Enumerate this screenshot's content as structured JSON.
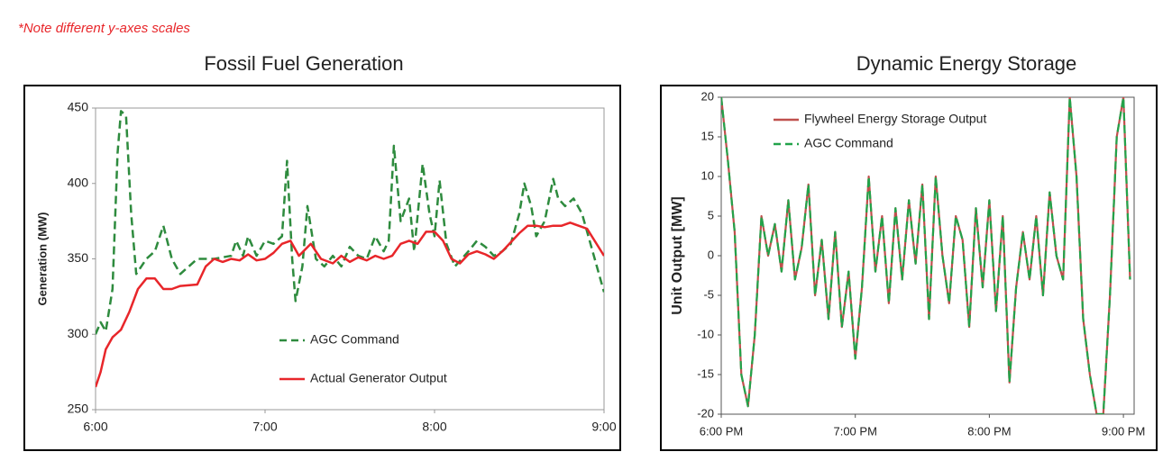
{
  "note": "*Note different y-axes scales",
  "chart_data": [
    {
      "type": "line",
      "title": "Fossil Fuel Generation",
      "y_label": "Generation (MW)",
      "xlim": [
        6,
        9
      ],
      "xticks": [
        {
          "value": 6,
          "label": "6:00"
        },
        {
          "value": 7,
          "label": "7:00"
        },
        {
          "value": 8,
          "label": "8:00"
        },
        {
          "value": 9,
          "label": "9:00"
        }
      ],
      "ylim": [
        250,
        450
      ],
      "yticks": [
        250,
        300,
        350,
        400,
        450
      ],
      "grid": false,
      "legend": "lower center",
      "series": [
        {
          "name": "AGC Command",
          "color": "#2e8b3e",
          "style": "dashed",
          "x": [
            6.0,
            6.03,
            6.06,
            6.1,
            6.13,
            6.15,
            6.18,
            6.21,
            6.24,
            6.3,
            6.35,
            6.4,
            6.45,
            6.5,
            6.55,
            6.6,
            6.7,
            6.8,
            6.83,
            6.87,
            6.9,
            6.95,
            7.0,
            7.05,
            7.1,
            7.13,
            7.16,
            7.18,
            7.22,
            7.25,
            7.3,
            7.35,
            7.4,
            7.45,
            7.5,
            7.55,
            7.6,
            7.65,
            7.7,
            7.73,
            7.76,
            7.8,
            7.85,
            7.88,
            7.93,
            7.97,
            8.0,
            8.03,
            8.07,
            8.12,
            8.2,
            8.25,
            8.3,
            8.35,
            8.4,
            8.45,
            8.5,
            8.53,
            8.57,
            8.6,
            8.65,
            8.7,
            8.73,
            8.77,
            8.82,
            8.87,
            8.92,
            9.0
          ],
          "values": [
            300,
            308,
            302,
            330,
            420,
            448,
            445,
            380,
            340,
            350,
            355,
            372,
            350,
            340,
            345,
            350,
            350,
            352,
            362,
            352,
            365,
            352,
            362,
            360,
            365,
            415,
            350,
            322,
            345,
            385,
            350,
            345,
            352,
            345,
            358,
            352,
            350,
            365,
            355,
            362,
            425,
            375,
            390,
            355,
            413,
            380,
            365,
            402,
            360,
            345,
            355,
            362,
            358,
            352,
            355,
            360,
            380,
            400,
            385,
            365,
            375,
            403,
            390,
            385,
            390,
            380,
            360,
            328
          ]
        },
        {
          "name": "Actual Generator Output",
          "color": "#e8262a",
          "style": "solid",
          "x": [
            6.0,
            6.03,
            6.06,
            6.1,
            6.15,
            6.2,
            6.25,
            6.3,
            6.35,
            6.4,
            6.45,
            6.5,
            6.6,
            6.65,
            6.7,
            6.75,
            6.8,
            6.85,
            6.9,
            6.95,
            7.0,
            7.05,
            7.1,
            7.15,
            7.2,
            7.27,
            7.33,
            7.4,
            7.45,
            7.5,
            7.55,
            7.6,
            7.65,
            7.7,
            7.75,
            7.8,
            7.85,
            7.9,
            7.95,
            8.0,
            8.05,
            8.1,
            8.15,
            8.2,
            8.25,
            8.3,
            8.35,
            8.4,
            8.5,
            8.55,
            8.6,
            8.65,
            8.7,
            8.75,
            8.8,
            8.85,
            8.9,
            9.0
          ],
          "values": [
            265,
            275,
            290,
            298,
            303,
            315,
            330,
            337,
            337,
            330,
            330,
            332,
            333,
            345,
            350,
            348,
            350,
            349,
            353,
            349,
            350,
            354,
            360,
            362,
            352,
            360,
            350,
            347,
            352,
            348,
            351,
            349,
            352,
            350,
            352,
            360,
            362,
            360,
            368,
            368,
            362,
            350,
            347,
            353,
            355,
            353,
            350,
            355,
            367,
            372,
            372,
            371,
            372,
            372,
            374,
            372,
            370,
            352
          ]
        }
      ]
    },
    {
      "type": "line",
      "title": "Dynamic Energy Storage",
      "y_label": "Unit Output [MW]",
      "xlim": [
        18,
        21.08
      ],
      "xticks": [
        {
          "value": 18,
          "label": "6:00 PM"
        },
        {
          "value": 19,
          "label": "7:00 PM"
        },
        {
          "value": 20,
          "label": "8:00 PM"
        },
        {
          "value": 21,
          "label": "9:00 PM"
        }
      ],
      "ylim": [
        -20,
        20
      ],
      "yticks": [
        -20,
        -15,
        -10,
        -5,
        0,
        5,
        10,
        15,
        20
      ],
      "grid": false,
      "legend": "upper left",
      "series": [
        {
          "name": "Flywheel Energy Storage Output",
          "color": "#c0504d",
          "style": "solid",
          "x": [
            18.0,
            18.05,
            18.1,
            18.15,
            18.2,
            18.25,
            18.3,
            18.35,
            18.4,
            18.45,
            18.5,
            18.55,
            18.6,
            18.65,
            18.7,
            18.75,
            18.8,
            18.85,
            18.9,
            18.95,
            19.0,
            19.05,
            19.1,
            19.15,
            19.2,
            19.25,
            19.3,
            19.35,
            19.4,
            19.45,
            19.5,
            19.55,
            19.6,
            19.65,
            19.7,
            19.75,
            19.8,
            19.85,
            19.9,
            19.95,
            20.0,
            20.05,
            20.1,
            20.15,
            20.2,
            20.25,
            20.3,
            20.35,
            20.4,
            20.45,
            20.5,
            20.55,
            20.6,
            20.65,
            20.7,
            20.75,
            20.8,
            20.85,
            20.9,
            20.95,
            21.0,
            21.05
          ],
          "values": [
            20,
            12,
            3,
            -15,
            -19,
            -10,
            5,
            0,
            4,
            -2,
            7,
            -3,
            1,
            9,
            -5,
            2,
            -8,
            3,
            -9,
            -2,
            -13,
            -4,
            10,
            -2,
            5,
            -6,
            6,
            -3,
            7,
            -1,
            9,
            -8,
            10,
            0,
            -6,
            5,
            2,
            -9,
            6,
            -4,
            7,
            -7,
            5,
            -16,
            -4,
            3,
            -3,
            5,
            -5,
            8,
            0,
            -3,
            20,
            10,
            -8,
            -15,
            -20,
            -20,
            -5,
            15,
            20,
            -3
          ]
        },
        {
          "name": "AGC Command",
          "color": "#22a34a",
          "style": "dashed",
          "x": [
            18.0,
            18.05,
            18.1,
            18.15,
            18.2,
            18.25,
            18.3,
            18.35,
            18.4,
            18.45,
            18.5,
            18.55,
            18.6,
            18.65,
            18.7,
            18.75,
            18.8,
            18.85,
            18.9,
            18.95,
            19.0,
            19.05,
            19.1,
            19.15,
            19.2,
            19.25,
            19.3,
            19.35,
            19.4,
            19.45,
            19.5,
            19.55,
            19.6,
            19.65,
            19.7,
            19.75,
            19.8,
            19.85,
            19.9,
            19.95,
            20.0,
            20.05,
            20.1,
            20.15,
            20.2,
            20.25,
            20.3,
            20.35,
            20.4,
            20.45,
            20.5,
            20.55,
            20.6,
            20.65,
            20.7,
            20.75,
            20.8,
            20.85,
            20.9,
            20.95,
            21.0,
            21.05
          ],
          "values": [
            20,
            12,
            3,
            -15,
            -19,
            -10,
            5,
            0,
            4,
            -2,
            7,
            -3,
            1,
            9,
            -5,
            2,
            -8,
            3,
            -9,
            -2,
            -13,
            -4,
            10,
            -2,
            5,
            -6,
            6,
            -3,
            7,
            -1,
            9,
            -8,
            10,
            0,
            -6,
            5,
            2,
            -9,
            6,
            -4,
            7,
            -7,
            5,
            -16,
            -4,
            3,
            -3,
            5,
            -5,
            8,
            0,
            -3,
            20,
            10,
            -8,
            -15,
            -20,
            -20,
            -5,
            15,
            20,
            -3
          ]
        }
      ]
    }
  ]
}
